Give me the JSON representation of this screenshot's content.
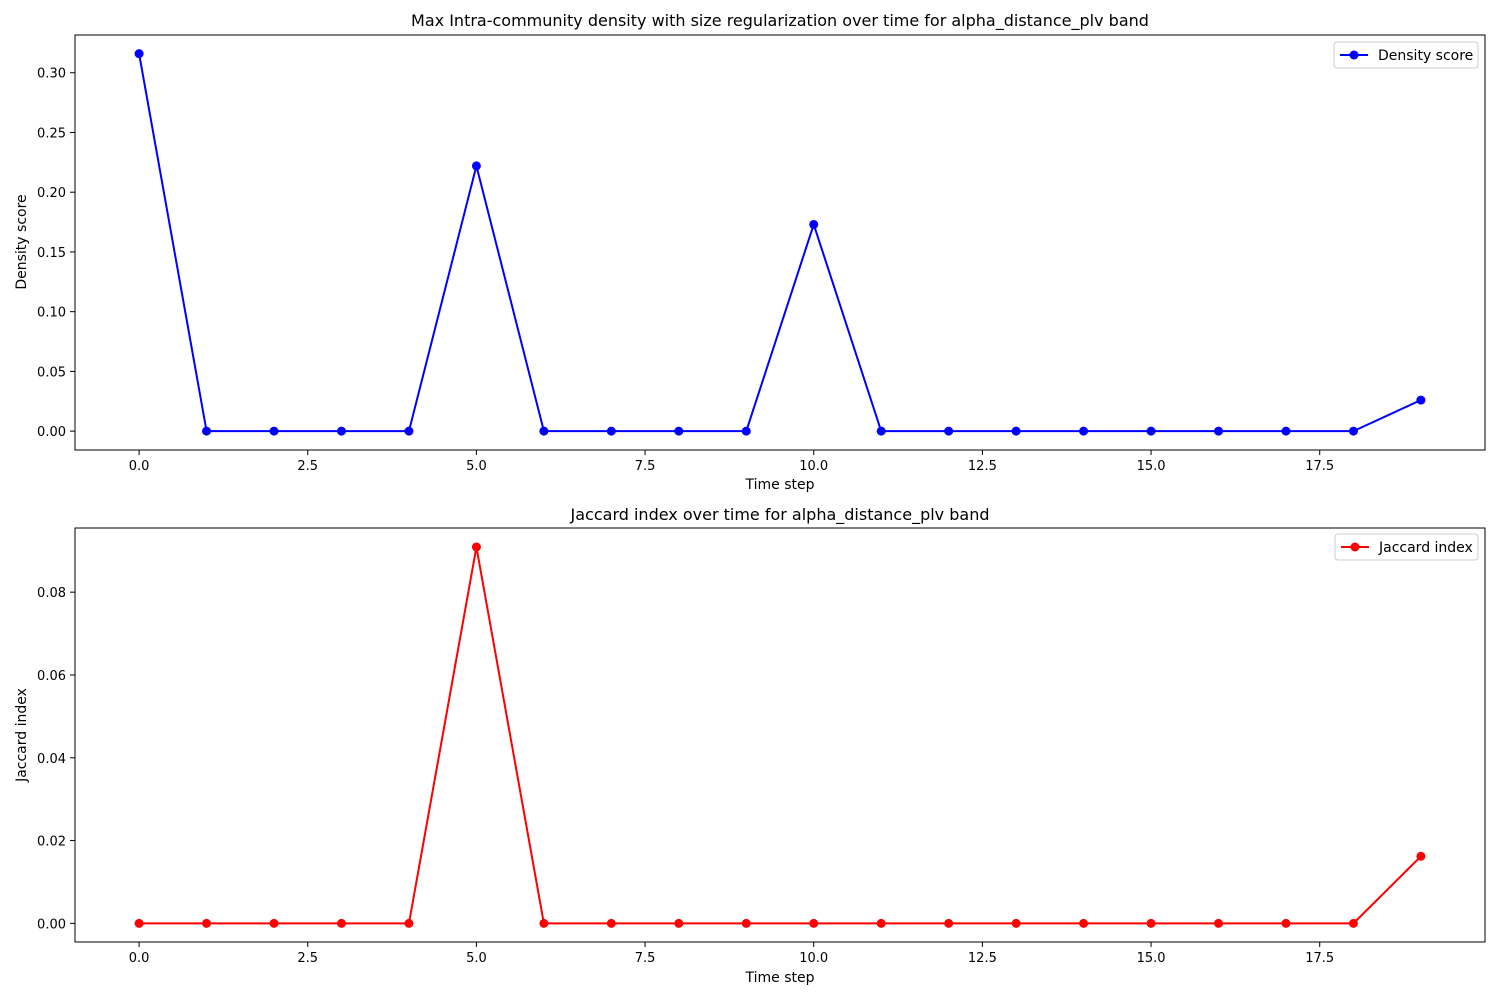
{
  "chart_data": [
    {
      "type": "line",
      "title": "Max Intra-community density with size regularization over time for alpha_distance_plv band",
      "xlabel": "Time step",
      "ylabel": "Density score",
      "xlim": [
        -0.95,
        19.95
      ],
      "ylim": [
        -0.0158,
        0.3316
      ],
      "xticks": [
        0.0,
        2.5,
        5.0,
        7.5,
        10.0,
        12.5,
        15.0,
        17.5
      ],
      "xtick_labels": [
        "0.0",
        "2.5",
        "5.0",
        "7.5",
        "10.0",
        "12.5",
        "15.0",
        "17.5"
      ],
      "yticks": [
        0.0,
        0.05,
        0.1,
        0.15,
        0.2,
        0.25,
        0.3
      ],
      "ytick_labels": [
        "0.00",
        "0.05",
        "0.10",
        "0.15",
        "0.20",
        "0.25",
        "0.30"
      ],
      "grid": false,
      "legend_position": "top-right",
      "series": [
        {
          "name": "Density score",
          "color": "#0000ff",
          "marker": "circle",
          "x": [
            0,
            1,
            2,
            3,
            4,
            5,
            6,
            7,
            8,
            9,
            10,
            11,
            12,
            13,
            14,
            15,
            16,
            17,
            18,
            19
          ],
          "values": [
            0.316,
            0,
            0,
            0,
            0,
            0.222,
            0,
            0,
            0,
            0,
            0.173,
            0,
            0,
            0,
            0,
            0,
            0,
            0,
            0,
            0.026
          ]
        }
      ]
    },
    {
      "type": "line",
      "title": "Jaccard index over time for alpha_distance_plv band",
      "xlabel": "Time step",
      "ylabel": "Jaccard index",
      "xlim": [
        -0.95,
        19.95
      ],
      "ylim": [
        -0.0045,
        0.0955
      ],
      "xticks": [
        0.0,
        2.5,
        5.0,
        7.5,
        10.0,
        12.5,
        15.0,
        17.5
      ],
      "xtick_labels": [
        "0.0",
        "2.5",
        "5.0",
        "7.5",
        "10.0",
        "12.5",
        "15.0",
        "17.5"
      ],
      "yticks": [
        0.0,
        0.02,
        0.04,
        0.06,
        0.08
      ],
      "ytick_labels": [
        "0.00",
        "0.02",
        "0.04",
        "0.06",
        "0.08"
      ],
      "grid": false,
      "legend_position": "top-right",
      "series": [
        {
          "name": "Jaccard index",
          "color": "#ff0000",
          "marker": "circle",
          "x": [
            0,
            1,
            2,
            3,
            4,
            5,
            6,
            7,
            8,
            9,
            10,
            11,
            12,
            13,
            14,
            15,
            16,
            17,
            18,
            19
          ],
          "values": [
            0,
            0,
            0,
            0,
            0,
            0.0909,
            0,
            0,
            0,
            0,
            0,
            0,
            0,
            0,
            0,
            0,
            0,
            0,
            0,
            0.0162
          ]
        }
      ]
    }
  ]
}
